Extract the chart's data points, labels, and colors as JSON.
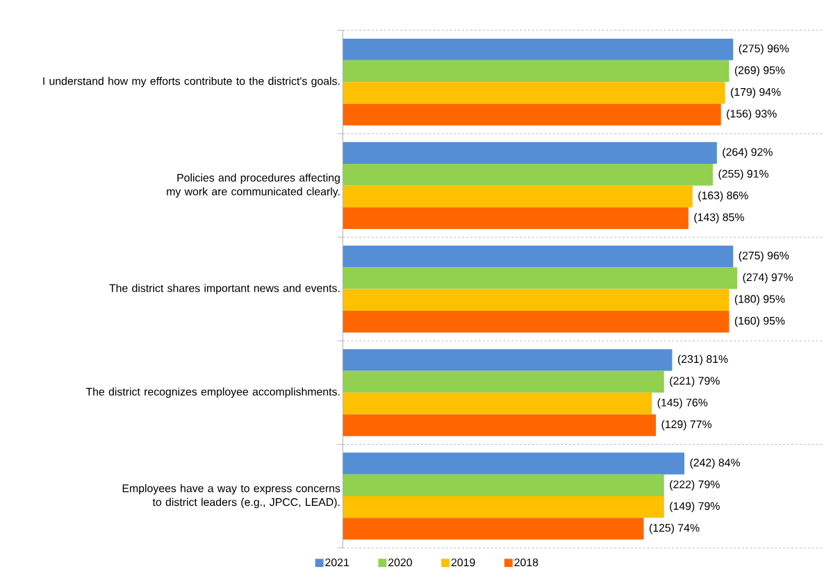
{
  "chart_data": {
    "type": "bar",
    "orientation": "horizontal",
    "categories": [
      "I understand how my efforts contribute to the district's goals.",
      "Policies and procedures affecting my work are communicated clearly.",
      "The district shares important news and events.",
      "The district recognizes employee accomplishments.",
      "Employees have a way to express concerns to district leaders (e.g., JPCC, LEAD)."
    ],
    "series": [
      {
        "name": "2021",
        "color": "#558ed5",
        "values": [
          96,
          92,
          96,
          81,
          84
        ],
        "value_labels": [
          "(275) 96%",
          "(264) 92%",
          "(275) 96%",
          "(231) 81%",
          "(242) 84%"
        ]
      },
      {
        "name": "2020",
        "color": "#92d050",
        "values": [
          95,
          91,
          97,
          79,
          79
        ],
        "value_labels": [
          "(269) 95%",
          "(255) 91%",
          "(274) 97%",
          "(221) 79%",
          "(222) 79%"
        ]
      },
      {
        "name": "2019",
        "color": "#ffc000",
        "values": [
          94,
          86,
          95,
          76,
          79
        ],
        "value_labels": [
          "(179) 94%",
          "(163) 86%",
          "(180) 95%",
          "(145) 76%",
          "(149) 79%"
        ]
      },
      {
        "name": "2018",
        "color": "#ff6600",
        "values": [
          93,
          85,
          95,
          77,
          74
        ],
        "value_labels": [
          "(156) 93%",
          "(143) 85%",
          "(160) 95%",
          "(129) 77%",
          "(125) 74%"
        ]
      }
    ],
    "grid": "y",
    "legend": "bottom"
  }
}
